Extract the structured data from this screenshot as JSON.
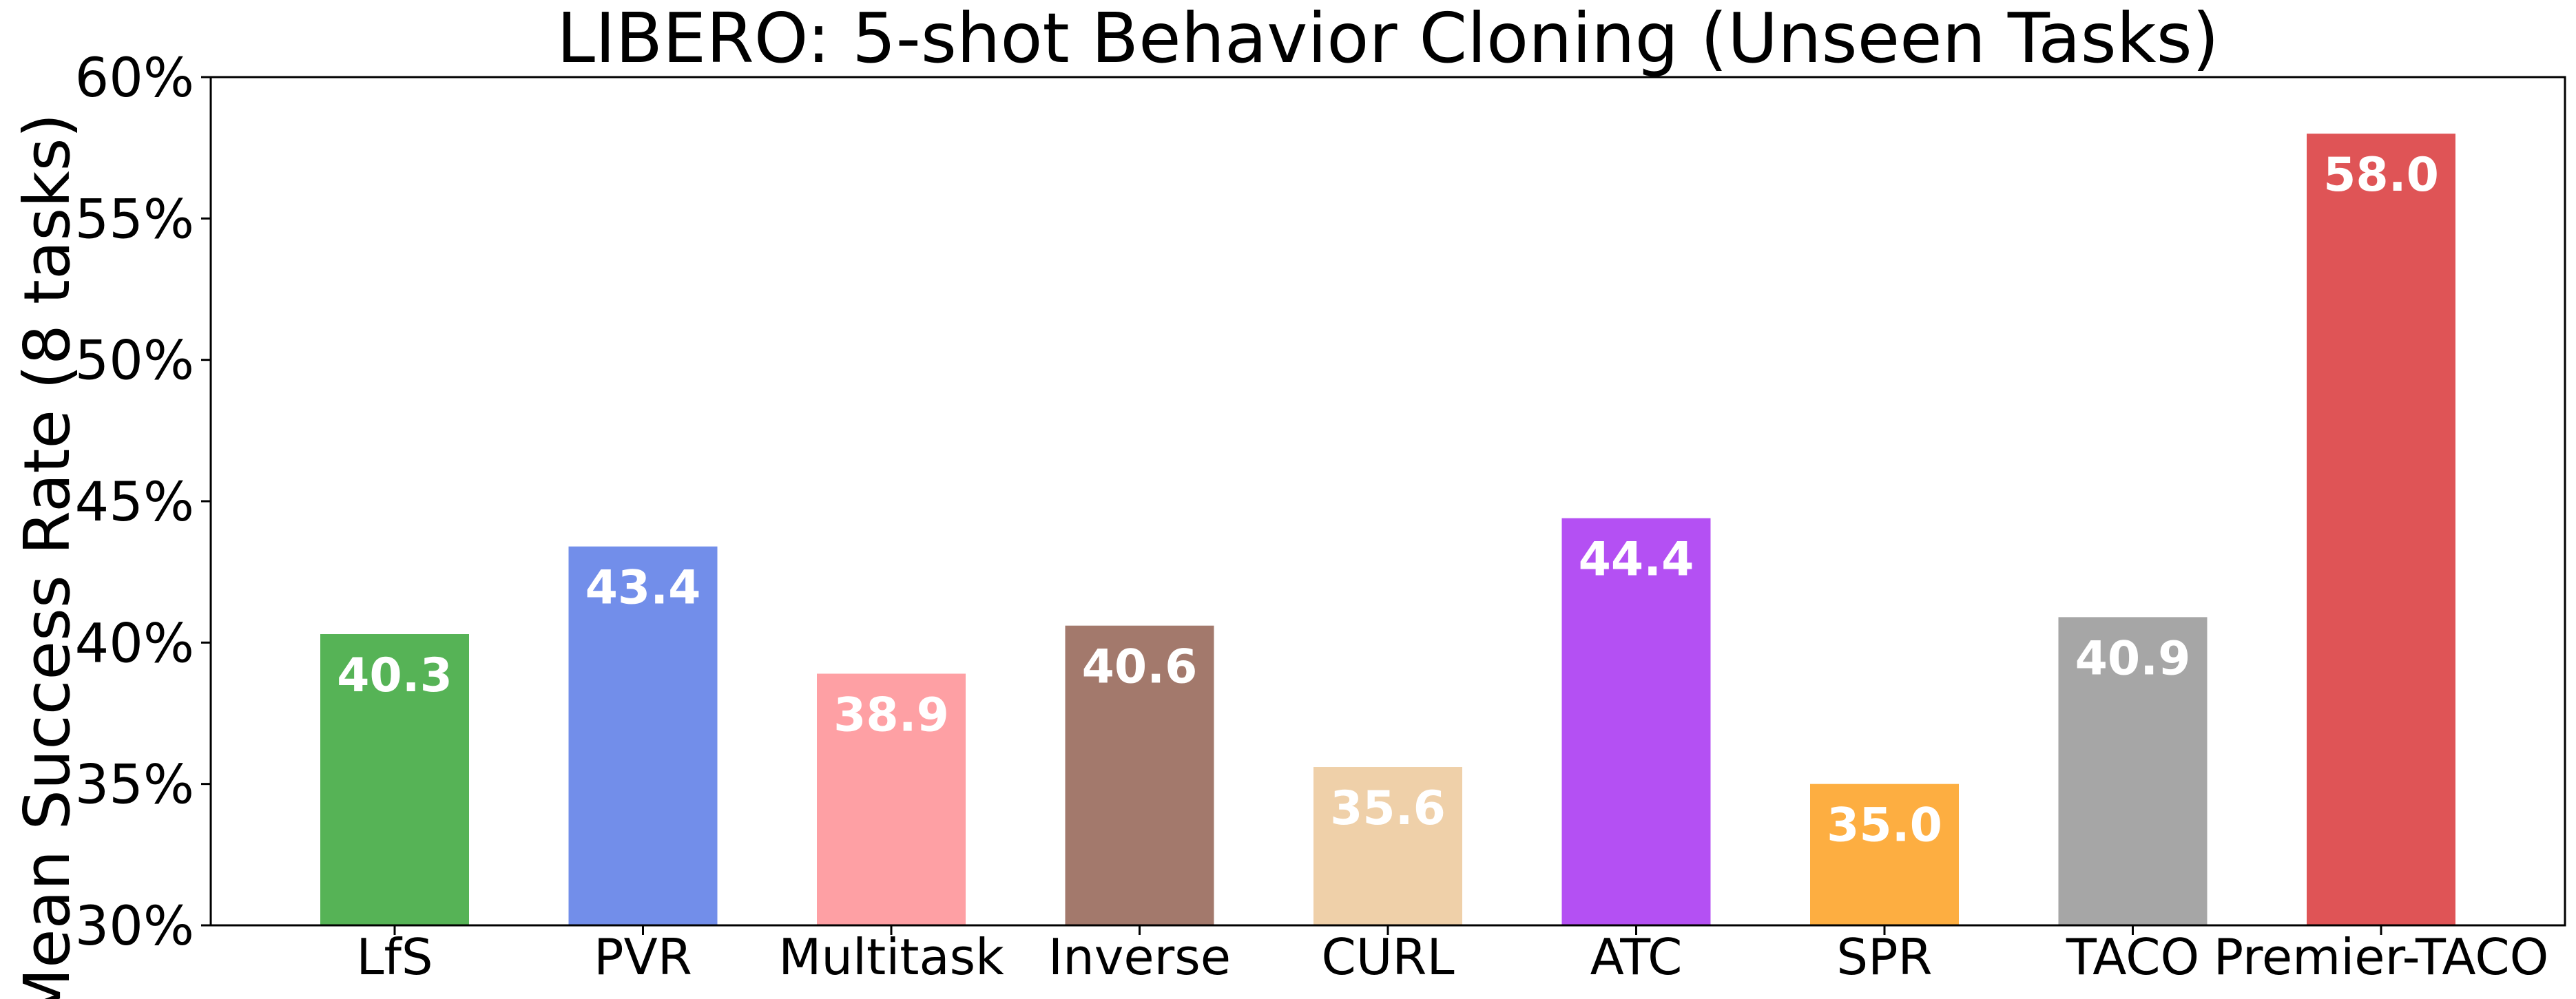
{
  "chart_data": {
    "type": "bar",
    "title": "LIBERO: 5-shot Behavior Cloning (Unseen Tasks)",
    "xlabel": "",
    "ylabel": "Mean Success Rate (8 tasks)",
    "ylim": [
      30,
      60
    ],
    "yticks": [
      30,
      35,
      40,
      45,
      50,
      55,
      60
    ],
    "ytick_labels": [
      "30%",
      "35%",
      "40%",
      "45%",
      "50%",
      "55%",
      "60%"
    ],
    "categories": [
      "LfS",
      "PVR",
      "Multitask",
      "Inverse",
      "CURL",
      "ATC",
      "SPR",
      "TACO",
      "Premier-TACO"
    ],
    "values": [
      40.3,
      43.4,
      38.9,
      40.6,
      35.6,
      44.4,
      35.0,
      40.9,
      58.0
    ],
    "data_labels": [
      "40.3",
      "43.4",
      "38.9",
      "40.6",
      "35.6",
      "44.4",
      "35.0",
      "40.9",
      "58.0"
    ],
    "colors": [
      "#56b356",
      "#728eea",
      "#fea0a4",
      "#a3796c",
      "#efd0a9",
      "#b450f3",
      "#fdae41",
      "#a6a6a6",
      "#df5456"
    ],
    "grid": false,
    "legend": "none"
  }
}
